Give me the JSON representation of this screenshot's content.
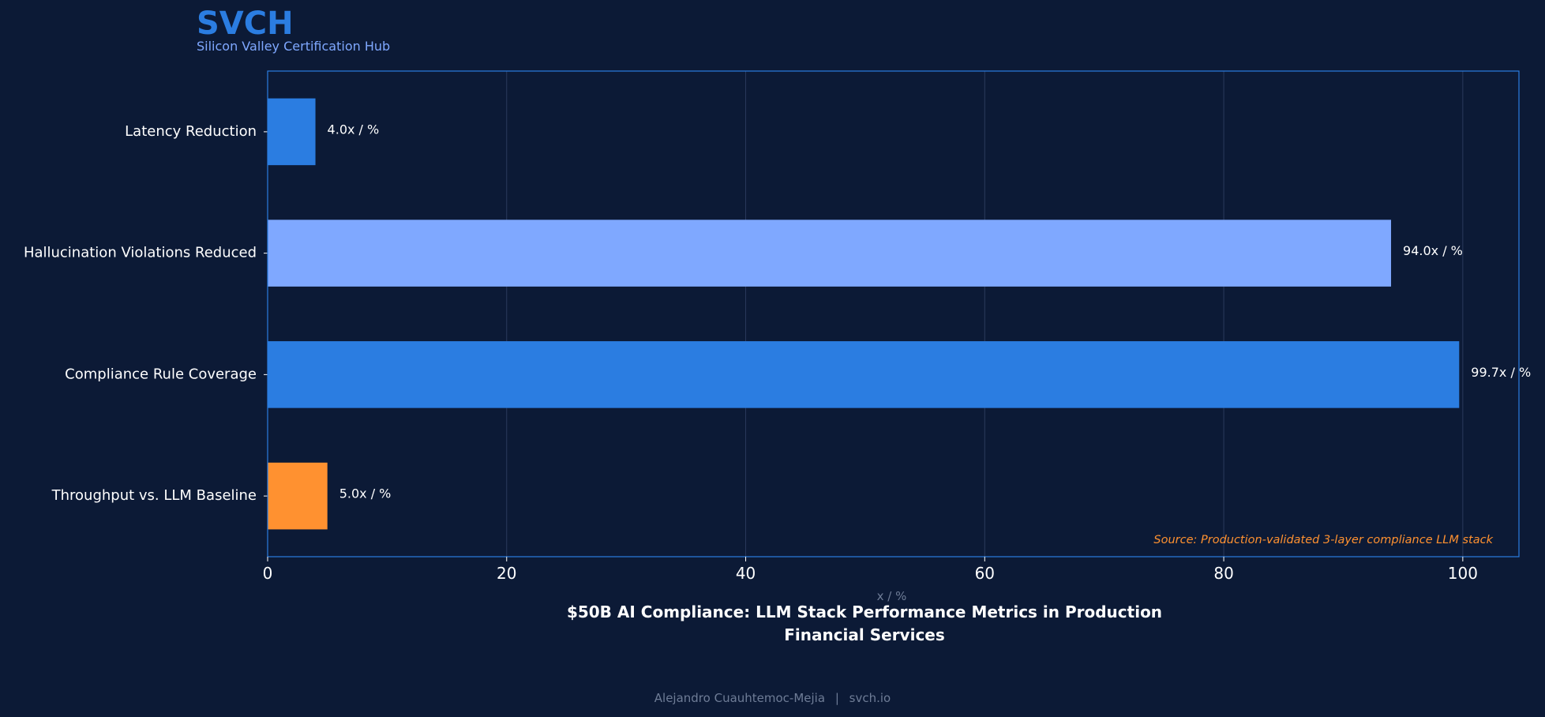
{
  "brand": {
    "name": "SVCH",
    "tagline": "Silicon Valley Certification Hub"
  },
  "footer": {
    "author": "Alejandro Cuauhtemoc-Mejia",
    "separator": "|",
    "site": "svch.io"
  },
  "colors": {
    "background": "#0c1a36",
    "brand": "#2b7de1",
    "brand_sub": "#7fa8ff",
    "source_note": "#ff9130",
    "text": "#ffffff",
    "muted": "#6e7c96"
  },
  "chart_data": {
    "type": "bar",
    "orientation": "horizontal",
    "title": "$50B AI Compliance: LLM Stack Performance Metrics in Production\nFinancial Services",
    "xlabel": "x / %",
    "ylabel": "",
    "xlim": [
      0,
      104.7
    ],
    "xticks": [
      0,
      20,
      40,
      60,
      80,
      100
    ],
    "grid": true,
    "legend": "none",
    "categories": [
      "Latency Reduction",
      "Hallucination Violations Reduced",
      "Compliance Rule Coverage",
      "Throughput vs. LLM Baseline"
    ],
    "values": [
      4.0,
      94.0,
      99.7,
      5.0
    ],
    "value_labels": [
      "4.0x / %",
      "94.0x / %",
      "99.7x / %",
      "5.0x / %"
    ],
    "bar_colors": [
      "#2b7de1",
      "#7fa8ff",
      "#2b7de1",
      "#ff9130"
    ],
    "annotation": "Source: Production-validated 3-layer compliance LLM stack"
  }
}
